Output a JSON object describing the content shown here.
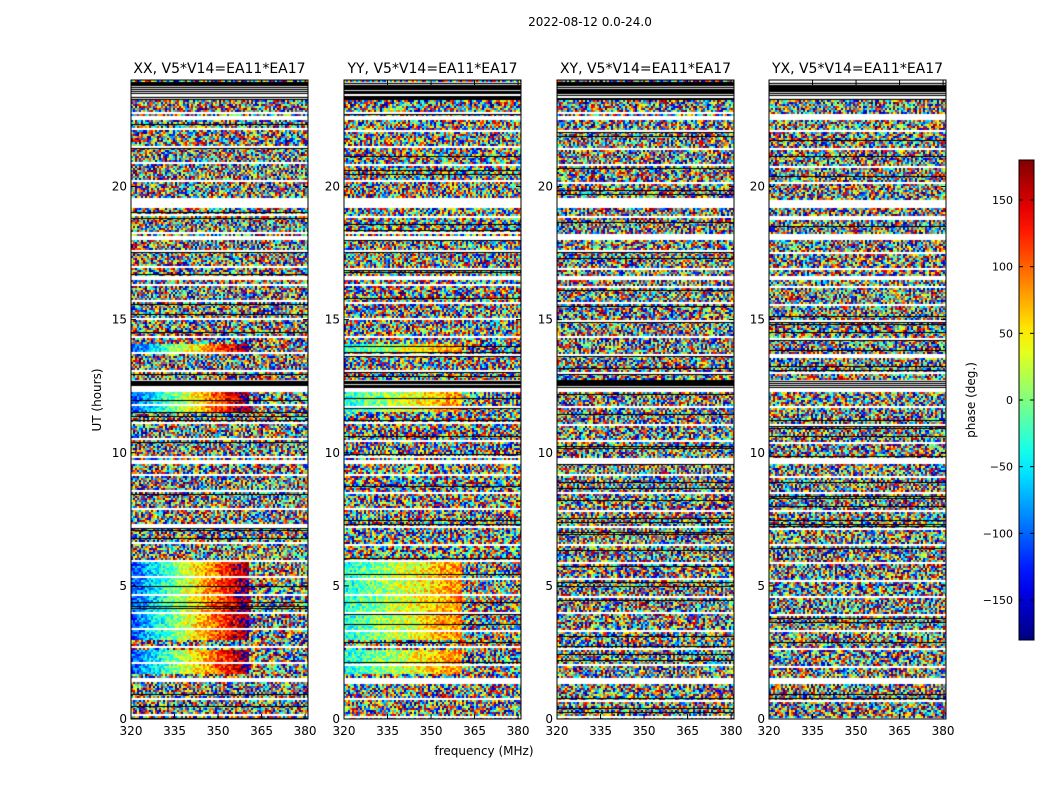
{
  "figure_title": "2022-08-12 0.0-24.0",
  "chart_data": {
    "type": "heatmap",
    "title": "2022-08-12 0.0-24.0",
    "xlabel": "frequency (MHz)",
    "ylabel": "UT (hours)",
    "xlim": [
      320,
      381
    ],
    "ylim": [
      0,
      24
    ],
    "xticks": [
      320,
      335,
      350,
      365,
      380
    ],
    "yticks": [
      0,
      5,
      10,
      15,
      20
    ],
    "panels": [
      {
        "title": "XX, V5*V14=EA11*EA17",
        "pol": "XX"
      },
      {
        "title": "YY, V5*V14=EA11*EA17",
        "pol": "YY"
      },
      {
        "title": "XY, V5*V14=EA11*EA17",
        "pol": "XY"
      },
      {
        "title": "YX, V5*V14=EA11*EA17",
        "pol": "YX"
      }
    ],
    "colorbar": {
      "label": "phase (deg.)",
      "range": [
        -180,
        180
      ],
      "ticks": [
        150,
        100,
        50,
        0,
        -50,
        -100,
        -150
      ],
      "colormap": "jet"
    },
    "flagged_ut_intervals": [
      [
        23.3,
        24.0
      ],
      [
        12.4,
        12.7
      ],
      [
        18.7,
        19.2
      ],
      [
        9.5,
        9.7
      ],
      [
        1.4,
        1.6
      ]
    ]
  }
}
